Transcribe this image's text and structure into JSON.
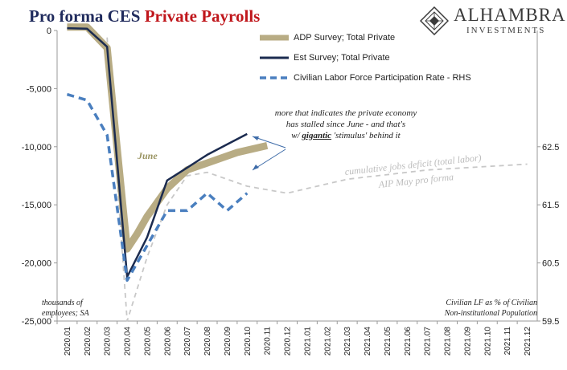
{
  "title": {
    "part1": "Pro forma CES ",
    "part2": "Private Payrolls"
  },
  "logo": {
    "name": "ALHAMBRA",
    "sub": "INVESTMENTS"
  },
  "colors": {
    "adp": "#b8ac84",
    "est": "#1b2b4f",
    "lfpr": "#4a7fbf",
    "proforma": "#c8c8c8",
    "title_blue": "#1f2a5c",
    "title_red": "#c0171c"
  },
  "chart_data": {
    "type": "line",
    "categories": [
      "2020.01",
      "2020.02",
      "2020.03",
      "2020.04",
      "2020.05",
      "2020.06",
      "2020.07",
      "2020.08",
      "2020.09",
      "2020.10",
      "2020.11",
      "2020.12",
      "2021.01",
      "2021.02",
      "2021.03",
      "2021.04",
      "2021.05",
      "2021.06",
      "2021.07",
      "2021.08",
      "2021.09",
      "2021.10",
      "2021.11",
      "2021.12"
    ],
    "left_axis": {
      "ylim": [
        -25000,
        0
      ],
      "ticks": [
        0,
        -5000,
        -10000,
        -15000,
        -20000,
        -25000
      ],
      "tick_labels": [
        "0",
        "-5,000",
        "-10,000",
        "-15,000",
        "-20,000",
        "-25,000"
      ]
    },
    "right_axis": {
      "ylim": [
        59.5,
        64.5
      ],
      "ticks": [
        59.5,
        60.5,
        61.5,
        62.5
      ],
      "tick_labels": [
        "59.5",
        "60.5",
        "61.5",
        "62.5"
      ]
    },
    "series": [
      {
        "name": "ADP Survey; Total Private",
        "axis": "left",
        "x": [
          0,
          1,
          2,
          3,
          3.5,
          4,
          4.5,
          5,
          5.5,
          6,
          6.5,
          7,
          7.5,
          8,
          8.5,
          9,
          9.5,
          10
        ],
        "values": [
          300,
          300,
          -1500,
          -18800,
          -17500,
          -16000,
          -14800,
          -13600,
          -12800,
          -12000,
          -11700,
          -11400,
          -11100,
          -10800,
          -10500,
          -10300,
          -10100,
          -9900
        ]
      },
      {
        "name": "Est Survey; Total Private",
        "axis": "left",
        "x": [
          0,
          1,
          2,
          3,
          4,
          5,
          6,
          7,
          8,
          9
        ],
        "values": [
          200,
          150,
          -1400,
          -21200,
          -17800,
          -12900,
          -11800,
          -10700,
          -9800,
          -8900
        ]
      },
      {
        "name": "Civilian Labor Force Participation Rate - RHS",
        "axis": "right",
        "x": [
          0,
          1,
          2,
          3,
          4,
          5,
          6,
          7,
          8,
          9
        ],
        "values": [
          63.4,
          63.3,
          62.7,
          60.2,
          60.8,
          61.4,
          61.4,
          61.7,
          61.4,
          61.7
        ]
      },
      {
        "axis": "left",
        "x": [
          2,
          3,
          4,
          5,
          6,
          7,
          8,
          9,
          10,
          11,
          12,
          13,
          14,
          15,
          16,
          17,
          18,
          19,
          20,
          21,
          22,
          23
        ],
        "values": [
          -600,
          -25000,
          -19500,
          -15000,
          -12500,
          -12200,
          -12800,
          -13400,
          -13700,
          -14000,
          -13600,
          -13200,
          -12800,
          -12600,
          -12400,
          -12200,
          -12000,
          -11900,
          -11800,
          -11700,
          -11600,
          -11500
        ]
      }
    ],
    "annotations": {
      "june": "June",
      "comment": [
        "more that indicates the private economy",
        "has stalled since June - and that's",
        "w/ gigantic 'stimulus' behind it"
      ],
      "comment_gigantic": "gigantic",
      "deficit": "cumulative jobs deficit (total labor)",
      "aip": "AIP May pro forma",
      "left_unit": [
        "thousands of",
        "employees; SA"
      ],
      "right_unit": [
        "Civilian LF as % of Civilian",
        "Non-institutional Population"
      ]
    }
  }
}
